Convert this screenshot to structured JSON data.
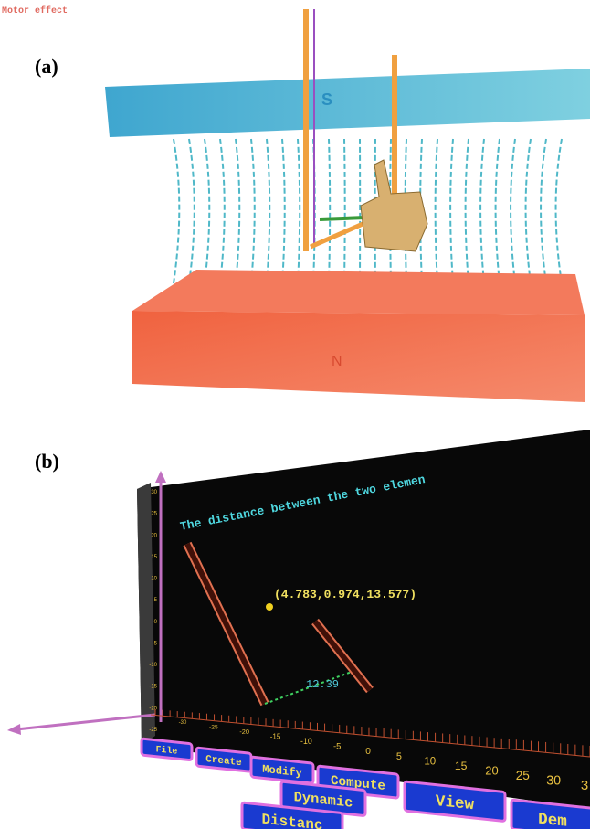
{
  "panel_a": {
    "title": "Motor effect",
    "label": "(a)",
    "south_label": "S",
    "north_label": "N"
  },
  "panel_b": {
    "label": "(b)",
    "caption": "The distance between the two elemen",
    "point_label": "(4.783,0.974,13.577)",
    "distance_label": "12.39",
    "vertical_ticks": [
      30,
      25,
      20,
      15,
      10,
      5,
      0,
      -5,
      -10,
      -15,
      -20,
      -25
    ],
    "horizontal_ticks": [
      -30,
      -25,
      -20,
      -15,
      -10,
      -5,
      0,
      5,
      10,
      15,
      20,
      25,
      30,
      3
    ],
    "menu": [
      "File",
      "Create",
      "Modify",
      "Compute",
      "View",
      "Dem",
      "Dynamic",
      "Distanc"
    ]
  }
}
